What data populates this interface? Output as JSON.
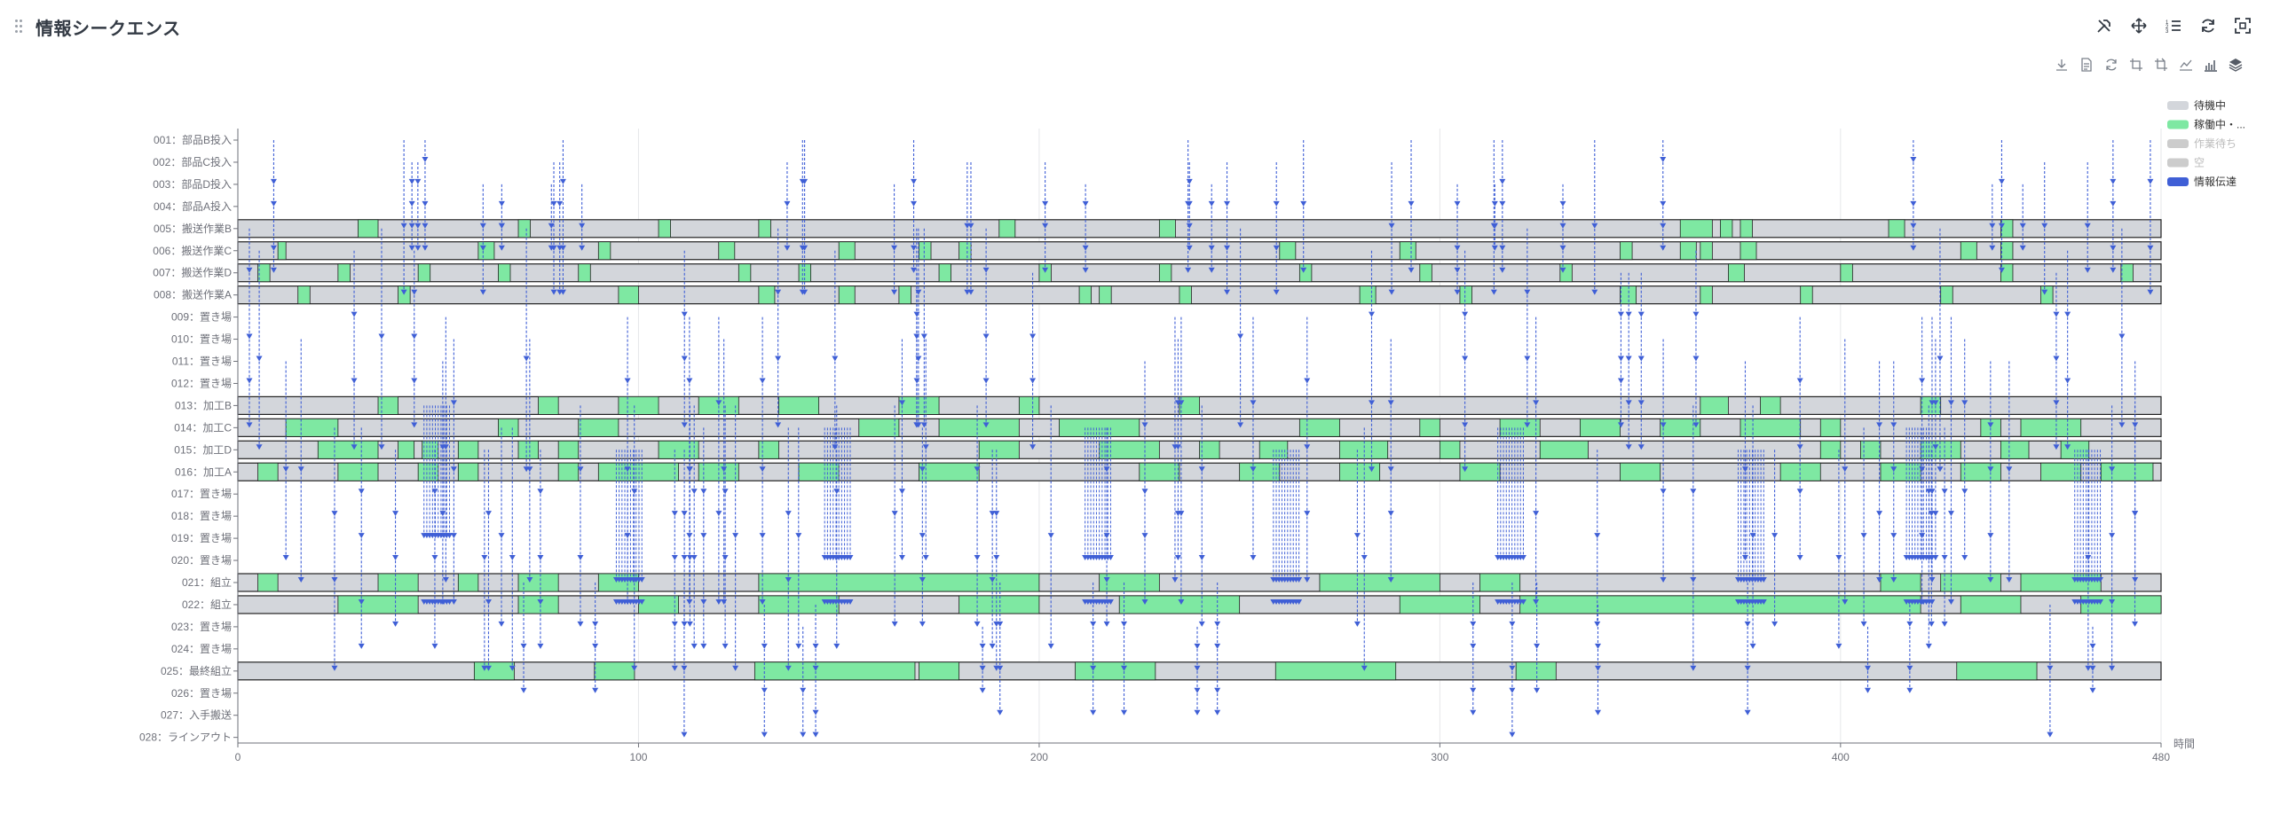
{
  "panel": {
    "title": "情報シークエンス"
  },
  "header_icons": [
    "tools-icon",
    "move-icon",
    "list-icon",
    "refresh-icon",
    "fullscreen-icon"
  ],
  "toolbox_icons": [
    "download-icon",
    "data-view-icon",
    "restore-icon",
    "zoom-icon",
    "zoom-reset-icon",
    "line-chart-icon",
    "bar-chart-icon",
    "stack-icon"
  ],
  "chart_data": {
    "type": "gantt",
    "title": "",
    "xlabel": "時間",
    "xlim": [
      0,
      480
    ],
    "x_ticks": [
      "0",
      "100",
      "200",
      "300",
      "400",
      "480"
    ],
    "grid": true,
    "legend_position": "top-right",
    "legend": [
      {
        "name": "待機中",
        "color": "#d3d6db",
        "active": true
      },
      {
        "name": "稼働中・...",
        "color": "#7ee8a2",
        "active": true
      },
      {
        "name": "作業待ち",
        "color": "#cccccc",
        "active": false
      },
      {
        "name": "空",
        "color": "#cccccc",
        "active": false
      },
      {
        "name": "情報伝達",
        "color": "#3f5fd6",
        "active": true
      }
    ],
    "rows": [
      {
        "label": "001：部品B投入",
        "kind": "source"
      },
      {
        "label": "002：部品C投入",
        "kind": "source"
      },
      {
        "label": "003：部品D投入",
        "kind": "source"
      },
      {
        "label": "004：部品A投入",
        "kind": "source"
      },
      {
        "label": "005：搬送作業B",
        "kind": "process",
        "busy": [
          [
            30,
            35
          ],
          [
            70,
            73
          ],
          [
            105,
            108
          ],
          [
            130,
            133
          ],
          [
            190,
            194
          ],
          [
            230,
            234
          ],
          [
            360,
            368
          ],
          [
            370,
            373
          ],
          [
            375,
            378
          ],
          [
            412,
            416
          ],
          [
            440,
            443
          ]
        ]
      },
      {
        "label": "006：搬送作業C",
        "kind": "process",
        "busy": [
          [
            10,
            12
          ],
          [
            60,
            64
          ],
          [
            90,
            93
          ],
          [
            120,
            124
          ],
          [
            150,
            154
          ],
          [
            170,
            173
          ],
          [
            180,
            183
          ],
          [
            260,
            264
          ],
          [
            290,
            294
          ],
          [
            345,
            348
          ],
          [
            360,
            364
          ],
          [
            365,
            368
          ],
          [
            375,
            379
          ],
          [
            430,
            434
          ],
          [
            440,
            443
          ]
        ]
      },
      {
        "label": "007：搬送作業D",
        "kind": "process",
        "busy": [
          [
            5,
            8
          ],
          [
            25,
            28
          ],
          [
            45,
            48
          ],
          [
            65,
            68
          ],
          [
            85,
            88
          ],
          [
            125,
            128
          ],
          [
            140,
            143
          ],
          [
            175,
            178
          ],
          [
            200,
            203
          ],
          [
            230,
            233
          ],
          [
            265,
            268
          ],
          [
            295,
            298
          ],
          [
            330,
            333
          ],
          [
            372,
            376
          ],
          [
            400,
            403
          ],
          [
            440,
            443
          ],
          [
            470,
            473
          ]
        ]
      },
      {
        "label": "008：搬送作業A",
        "kind": "process",
        "busy": [
          [
            15,
            18
          ],
          [
            40,
            43
          ],
          [
            95,
            100
          ],
          [
            130,
            134
          ],
          [
            150,
            154
          ],
          [
            165,
            168
          ],
          [
            210,
            213
          ],
          [
            215,
            218
          ],
          [
            235,
            238
          ],
          [
            280,
            284
          ],
          [
            305,
            308
          ],
          [
            345,
            349
          ],
          [
            365,
            368
          ],
          [
            390,
            393
          ],
          [
            425,
            428
          ],
          [
            450,
            453
          ]
        ]
      },
      {
        "label": "009：置き場",
        "kind": "buffer"
      },
      {
        "label": "010：置き場",
        "kind": "buffer"
      },
      {
        "label": "011：置き場",
        "kind": "buffer"
      },
      {
        "label": "012：置き場",
        "kind": "buffer"
      },
      {
        "label": "013：加工B",
        "kind": "process",
        "busy": [
          [
            35,
            40
          ],
          [
            75,
            80
          ],
          [
            95,
            105
          ],
          [
            115,
            125
          ],
          [
            135,
            145
          ],
          [
            165,
            175
          ],
          [
            195,
            200
          ],
          [
            235,
            240
          ],
          [
            365,
            372
          ],
          [
            380,
            385
          ],
          [
            420,
            425
          ]
        ]
      },
      {
        "label": "014：加工C",
        "kind": "process",
        "busy": [
          [
            12,
            25
          ],
          [
            65,
            70
          ],
          [
            85,
            95
          ],
          [
            155,
            165
          ],
          [
            175,
            195
          ],
          [
            205,
            225
          ],
          [
            265,
            275
          ],
          [
            295,
            300
          ],
          [
            315,
            325
          ],
          [
            335,
            345
          ],
          [
            355,
            365
          ],
          [
            375,
            390
          ],
          [
            395,
            400
          ],
          [
            435,
            440
          ],
          [
            445,
            460
          ]
        ]
      },
      {
        "label": "015：加工D",
        "kind": "process",
        "busy": [
          [
            20,
            35
          ],
          [
            40,
            44
          ],
          [
            46,
            50
          ],
          [
            55,
            60
          ],
          [
            70,
            75
          ],
          [
            80,
            85
          ],
          [
            105,
            115
          ],
          [
            130,
            135
          ],
          [
            185,
            195
          ],
          [
            215,
            230
          ],
          [
            240,
            245
          ],
          [
            255,
            262
          ],
          [
            275,
            287
          ],
          [
            300,
            305
          ],
          [
            325,
            337
          ],
          [
            395,
            400
          ],
          [
            405,
            410
          ],
          [
            420,
            430
          ],
          [
            440,
            447
          ],
          [
            455,
            462
          ]
        ]
      },
      {
        "label": "016：加工A",
        "kind": "process",
        "busy": [
          [
            5,
            10
          ],
          [
            25,
            35
          ],
          [
            45,
            50
          ],
          [
            55,
            60
          ],
          [
            80,
            85
          ],
          [
            90,
            110
          ],
          [
            115,
            125
          ],
          [
            140,
            150
          ],
          [
            170,
            185
          ],
          [
            225,
            235
          ],
          [
            250,
            260
          ],
          [
            275,
            285
          ],
          [
            305,
            315
          ],
          [
            345,
            355
          ],
          [
            385,
            395
          ],
          [
            410,
            420
          ],
          [
            430,
            440
          ],
          [
            450,
            460
          ],
          [
            465,
            478
          ]
        ]
      },
      {
        "label": "017：置き場",
        "kind": "buffer"
      },
      {
        "label": "018：置き場",
        "kind": "buffer"
      },
      {
        "label": "019：置き場",
        "kind": "buffer"
      },
      {
        "label": "020：置き場",
        "kind": "buffer"
      },
      {
        "label": "021：組立",
        "kind": "process",
        "busy": [
          [
            5,
            10
          ],
          [
            35,
            45
          ],
          [
            55,
            60
          ],
          [
            70,
            80
          ],
          [
            90,
            100
          ],
          [
            130,
            200
          ],
          [
            215,
            230
          ],
          [
            270,
            300
          ],
          [
            310,
            320
          ],
          [
            410,
            420
          ],
          [
            425,
            440
          ],
          [
            445,
            465
          ]
        ]
      },
      {
        "label": "022：組立",
        "kind": "process",
        "busy": [
          [
            25,
            45
          ],
          [
            70,
            80
          ],
          [
            100,
            110
          ],
          [
            130,
            150
          ],
          [
            180,
            200
          ],
          [
            220,
            250
          ],
          [
            290,
            310
          ],
          [
            320,
            420
          ],
          [
            430,
            445
          ],
          [
            460,
            480
          ]
        ]
      },
      {
        "label": "023：置き場",
        "kind": "buffer"
      },
      {
        "label": "024：置き場",
        "kind": "buffer"
      },
      {
        "label": "025：最終組立",
        "kind": "process",
        "busy": [
          [
            59,
            69
          ],
          [
            89,
            99
          ],
          [
            129,
            169
          ],
          [
            170,
            180
          ],
          [
            209,
            229
          ],
          [
            259,
            289
          ],
          [
            319,
            329
          ],
          [
            429,
            449
          ]
        ]
      },
      {
        "label": "026：置き場",
        "kind": "buffer"
      },
      {
        "label": "027：入手搬送",
        "kind": "buffer"
      },
      {
        "label": "028：ラインアウト",
        "kind": "buffer"
      }
    ]
  }
}
